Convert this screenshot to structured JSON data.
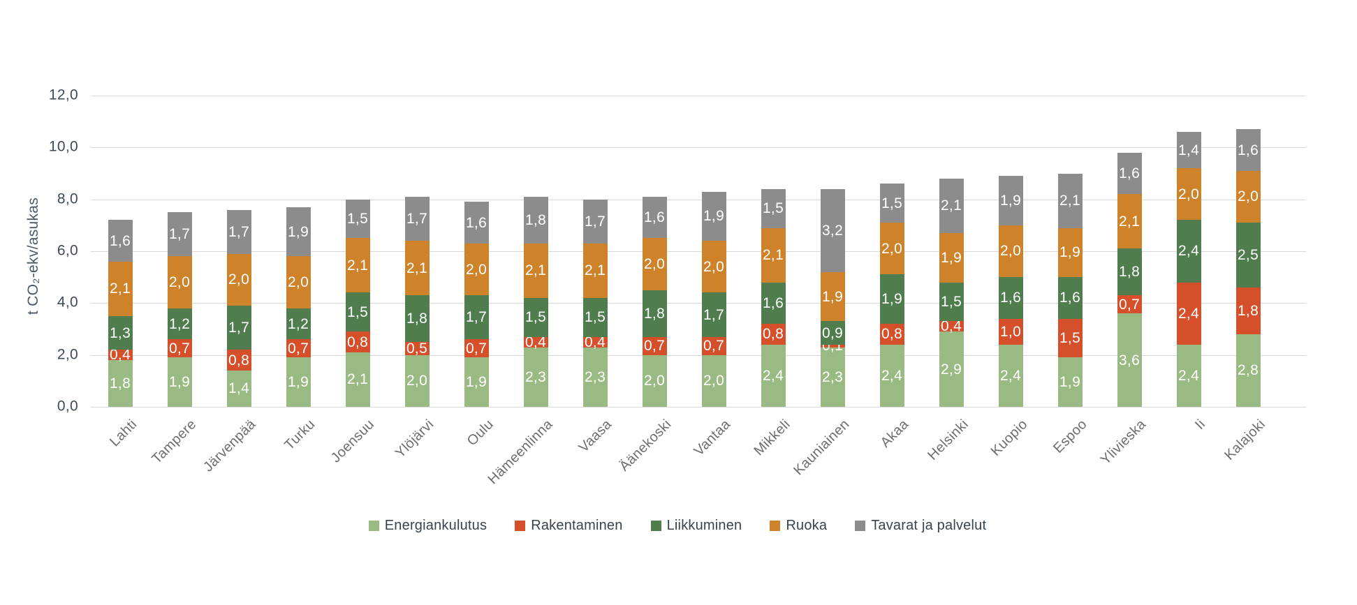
{
  "chart_data": {
    "type": "bar",
    "stacked": true,
    "title": "",
    "ylabel": "t CO₂-ekv/asukas",
    "xlabel": "",
    "ylim": [
      0,
      12
    ],
    "grid": "horizontal",
    "legend_position": "bottom",
    "value_label_style": "white, comma decimal, inside segment",
    "yticks": [
      {
        "value": 0,
        "label": "0,0"
      },
      {
        "value": 2,
        "label": "2,0"
      },
      {
        "value": 4,
        "label": "4,0"
      },
      {
        "value": 6,
        "label": "6,0"
      },
      {
        "value": 8,
        "label": "8,0"
      },
      {
        "value": 10,
        "label": "10,0"
      },
      {
        "value": 12,
        "label": "12,0"
      }
    ],
    "categories": [
      "Lahti",
      "Tampere",
      "Järvenpää",
      "Turku",
      "Joensuu",
      "Ylöjärvi",
      "Oulu",
      "Hämeenlinna",
      "Vaasa",
      "Äänekoski",
      "Vantaa",
      "Mikkeli",
      "Kauniainen",
      "Akaa",
      "Helsinki",
      "Kuopio",
      "Espoo",
      "Ylivieska",
      "Ii",
      "Kalajoki"
    ],
    "series": [
      {
        "name": "Energiankulutus",
        "color": "#9ABA84",
        "values": [
          1.8,
          1.9,
          1.4,
          1.9,
          2.1,
          2.0,
          1.9,
          2.3,
          2.3,
          2.0,
          2.0,
          2.4,
          2.3,
          2.4,
          2.9,
          2.4,
          1.9,
          3.6,
          2.4,
          2.8
        ]
      },
      {
        "name": "Rakentaminen",
        "color": "#D5502A",
        "values": [
          0.4,
          0.7,
          0.8,
          0.7,
          0.8,
          0.5,
          0.7,
          0.4,
          0.4,
          0.7,
          0.7,
          0.8,
          0.1,
          0.8,
          0.4,
          1.0,
          1.5,
          0.7,
          2.4,
          1.8
        ]
      },
      {
        "name": "Liikkuminen",
        "color": "#4F7D4D",
        "values": [
          1.3,
          1.2,
          1.7,
          1.2,
          1.5,
          1.8,
          1.7,
          1.5,
          1.5,
          1.8,
          1.7,
          1.6,
          0.9,
          1.9,
          1.5,
          1.6,
          1.6,
          1.8,
          2.4,
          2.5
        ]
      },
      {
        "name": "Ruoka",
        "color": "#CE832B",
        "values": [
          2.1,
          2.0,
          2.0,
          2.0,
          2.1,
          2.1,
          2.0,
          2.1,
          2.1,
          2.0,
          2.0,
          2.1,
          1.9,
          2.0,
          1.9,
          2.0,
          1.9,
          2.1,
          2.0,
          2.0
        ]
      },
      {
        "name": "Tavarat ja palvelut",
        "color": "#8C8C8C",
        "values": [
          1.6,
          1.7,
          1.7,
          1.9,
          1.5,
          1.7,
          1.6,
          1.8,
          1.7,
          1.6,
          1.9,
          1.5,
          3.2,
          1.5,
          2.1,
          1.9,
          2.1,
          1.6,
          1.4,
          1.6
        ]
      }
    ]
  },
  "colors": {
    "background": "#FFFFFF",
    "gridline": "#D9D9D9",
    "tick_text": "#3F4A58",
    "category_text": "#6E6E6E",
    "legend_text": "#39434E",
    "value_text": "#FFFFFF",
    "axis_title_text": "#4C5866"
  }
}
